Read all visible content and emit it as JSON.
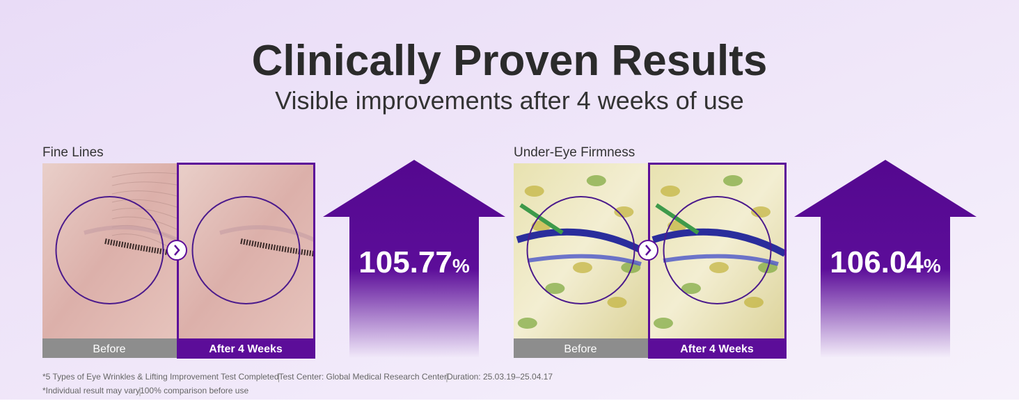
{
  "header": {
    "title": "Clinically Proven Results",
    "subtitle": "Visible improvements after 4 weeks of use"
  },
  "panels": [
    {
      "label": "Fine Lines",
      "before": "Before",
      "after": "After 4 Weeks",
      "value": "105.77",
      "unit": "%",
      "kind": "skin"
    },
    {
      "label": "Under-Eye Firmness",
      "before": "Before",
      "after": "After 4 Weeks",
      "value": "106.04",
      "unit": "%",
      "kind": "heatmap"
    }
  ],
  "footnotes": [
    [
      "*5 Types of Eye Wrinkles & Lifting Improvement Test Completed",
      "Test Center: Global Medical Research Center",
      "Duration: 25.03.19–25.04.17"
    ],
    [
      "*Individual result may vary",
      "100% comparison before use"
    ]
  ]
}
